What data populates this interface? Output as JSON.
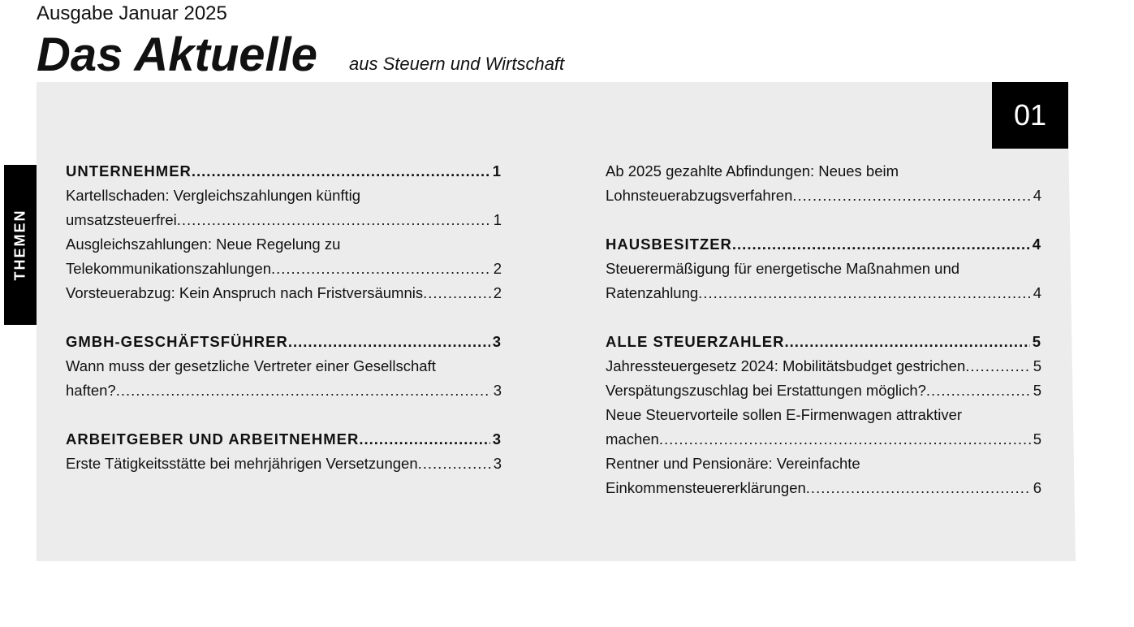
{
  "header": {
    "issue": "Ausgabe Januar 2025",
    "title": "Das Aktuelle",
    "subtitle": "aus Steuern und Wirtschaft",
    "number": "01",
    "side_label": "THEMEN"
  },
  "left": [
    {
      "heading": "UNTERNEHMER",
      "page": "1",
      "entries": [
        {
          "lines": [
            "Kartellschaden: Vergleichszahlungen künftig",
            "umsatzsteuerfrei"
          ],
          "page": "1"
        },
        {
          "lines": [
            "Ausgleichszahlungen: Neue Regelung zu",
            "Telekommunikationszahlungen "
          ],
          "page": "2"
        },
        {
          "lines": [
            "Vorsteuerabzug: Kein Anspruch nach Fristversäumnis"
          ],
          "page": "2"
        }
      ]
    },
    {
      "heading": "GMBH-GESCHÄFTSFÜHRER",
      "page": "3",
      "entries": [
        {
          "lines": [
            "Wann muss der gesetzliche Vertreter einer Gesellschaft",
            "haften?"
          ],
          "page": "3"
        }
      ]
    },
    {
      "heading": "ARBEITGEBER UND ARBEITNEHMER ",
      "page": "3",
      "entries": [
        {
          "lines": [
            "Erste Tätigkeitsstätte bei mehrjährigen Versetzungen  "
          ],
          "page": "3"
        }
      ]
    }
  ],
  "right": [
    {
      "heading": "",
      "page": "",
      "entries": [
        {
          "lines": [
            "Ab 2025 gezahlte Abfindungen: Neues beim",
            "Lohnsteuerabzugsverfahren"
          ],
          "page": "4"
        }
      ]
    },
    {
      "heading": "HAUSBESITZER ",
      "page": "4",
      "entries": [
        {
          "lines": [
            "Steuerermäßigung für energetische Maßnahmen und",
            "Ratenzahlung "
          ],
          "page": "4"
        }
      ]
    },
    {
      "heading": "ALLE STEUERZAHLER",
      "page": "5",
      "entries": [
        {
          "lines": [
            "Jahressteuergesetz 2024: Mobilitätsbudget gestrichen "
          ],
          "page": "5"
        },
        {
          "lines": [
            "Verspätungszuschlag bei Erstattungen möglich? "
          ],
          "page": "5"
        },
        {
          "lines": [
            "Neue Steuervorteile sollen E-Firmenwagen attraktiver",
            "machen"
          ],
          "page": "5"
        },
        {
          "lines": [
            "Rentner und Pensionäre: Vereinfachte",
            "Einkommensteuererklärungen"
          ],
          "page": "6"
        }
      ]
    }
  ]
}
